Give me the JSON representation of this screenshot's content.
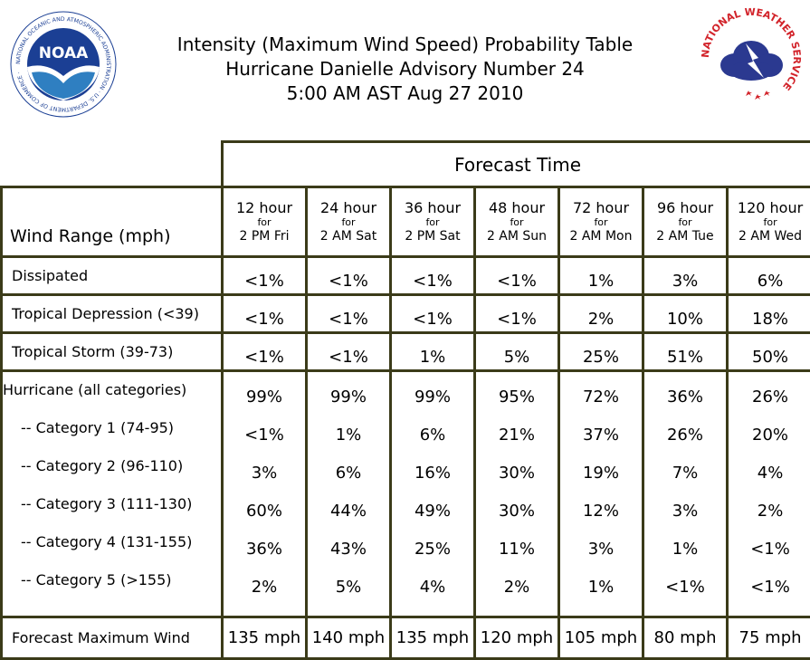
{
  "header": {
    "title_lines": [
      "Intensity (Maximum Wind Speed) Probability Table",
      "Hurricane Danielle Advisory Number 24",
      "5:00 AM AST Aug 27 2010"
    ],
    "noaa_logo": {
      "name": "noaa-logo",
      "text": "NOAA",
      "ring_text": "NATIONAL OCEANIC AND ATMOSPHERIC ADMINISTRATION · U.S. DEPARTMENT OF COMMERCE ·",
      "colors": {
        "ring": "#1b3f94",
        "bird": "#ffffff"
      }
    },
    "nws_logo": {
      "name": "nws-logo",
      "text": "NATIONAL WEATHER SERVICE",
      "colors": {
        "ring_text": "#d2232a",
        "cloud": "#2b3990",
        "bolt": "#ffffff",
        "stars": "#d2232a"
      }
    }
  },
  "table": {
    "forecast_time_label": "Forecast Time",
    "wind_range_label": "Wind Range (mph)",
    "columns": [
      {
        "hour": "12 hour",
        "for": "for",
        "when": "2 PM Fri"
      },
      {
        "hour": "24 hour",
        "for": "for",
        "when": "2 AM Sat"
      },
      {
        "hour": "36 hour",
        "for": "for",
        "when": "2 PM Sat"
      },
      {
        "hour": "48 hour",
        "for": "for",
        "when": "2 AM Sun"
      },
      {
        "hour": "72 hour",
        "for": "for",
        "when": "2 AM Mon"
      },
      {
        "hour": "96 hour",
        "for": "for",
        "when": "2 AM Tue"
      },
      {
        "hour": "120 hour",
        "for": "for",
        "when": "2 AM Wed"
      }
    ],
    "rows": [
      {
        "label": "Dissipated",
        "values": [
          "<1%",
          "<1%",
          "<1%",
          "<1%",
          "1%",
          "3%",
          "6%"
        ]
      },
      {
        "label": "Tropical Depression (<39)",
        "values": [
          "<1%",
          "<1%",
          "<1%",
          "<1%",
          "2%",
          "10%",
          "18%"
        ]
      },
      {
        "label": "Tropical Storm (39-73)",
        "values": [
          "<1%",
          "<1%",
          "1%",
          "5%",
          "25%",
          "51%",
          "50%"
        ]
      }
    ],
    "hurricane_group": [
      {
        "label": "Hurricane (all categories)",
        "values": [
          "99%",
          "99%",
          "99%",
          "95%",
          "72%",
          "36%",
          "26%"
        ]
      },
      {
        "label": "-- Category 1 (74-95)",
        "values": [
          "<1%",
          "1%",
          "6%",
          "21%",
          "37%",
          "26%",
          "20%"
        ]
      },
      {
        "label": "-- Category 2 (96-110)",
        "values": [
          "3%",
          "6%",
          "16%",
          "30%",
          "19%",
          "7%",
          "4%"
        ]
      },
      {
        "label": "-- Category 3 (111-130)",
        "values": [
          "60%",
          "44%",
          "49%",
          "30%",
          "12%",
          "3%",
          "2%"
        ]
      },
      {
        "label": "-- Category 4 (131-155)",
        "values": [
          "36%",
          "43%",
          "25%",
          "11%",
          "3%",
          "1%",
          "<1%"
        ]
      },
      {
        "label": "-- Category 5 (>155)",
        "values": [
          "2%",
          "5%",
          "4%",
          "2%",
          "1%",
          "<1%",
          "<1%"
        ]
      }
    ],
    "max_wind": {
      "label": "Forecast Maximum Wind",
      "values": [
        "135 mph",
        "140 mph",
        "135 mph",
        "120 mph",
        "105 mph",
        "80 mph",
        "75 mph"
      ]
    },
    "border_color": "#3b3b19"
  }
}
